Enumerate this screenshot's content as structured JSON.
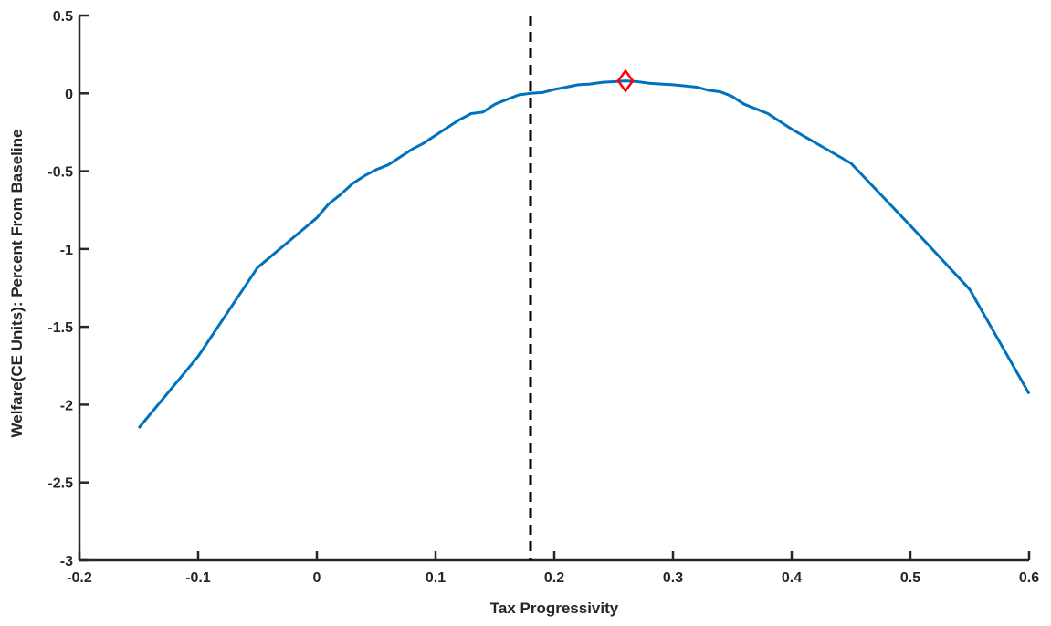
{
  "chart_data": {
    "type": "line",
    "title": "",
    "xlabel": "Tax Progressivity",
    "ylabel": "Welfare(CE Units): Percent From Baseline",
    "xlim": [
      -0.2,
      0.6
    ],
    "ylim": [
      -3,
      0.5
    ],
    "x_ticks": [
      -0.2,
      -0.1,
      0,
      0.1,
      0.2,
      0.3,
      0.4,
      0.5,
      0.6
    ],
    "x_tick_labels": [
      "-0.2",
      "-0.1",
      "0",
      "0.1",
      "0.2",
      "0.3",
      "0.4",
      "0.5",
      "0.6"
    ],
    "y_ticks": [
      -3,
      -2.5,
      -2,
      -1.5,
      -1,
      -0.5,
      0,
      0.5
    ],
    "y_tick_labels": [
      "-3",
      "-2.5",
      "-2",
      "-1.5",
      "-1",
      "-0.5",
      "0",
      "0.5"
    ],
    "grid": false,
    "series": [
      {
        "color": "#0072BD",
        "x": [
          -0.15,
          -0.1,
          -0.05,
          0,
          0.01,
          0.02,
          0.03,
          0.04,
          0.05,
          0.06,
          0.07,
          0.08,
          0.09,
          0.1,
          0.11,
          0.12,
          0.13,
          0.14,
          0.15,
          0.16,
          0.17,
          0.18,
          0.19,
          0.2,
          0.21,
          0.22,
          0.23,
          0.24,
          0.25,
          0.26,
          0.27,
          0.28,
          0.29,
          0.3,
          0.31,
          0.32,
          0.33,
          0.34,
          0.35,
          0.36,
          0.37,
          0.38,
          0.39,
          0.4,
          0.45,
          0.5,
          0.55,
          0.6
        ],
        "y": [
          -2.15,
          -1.69,
          -1.12,
          -0.8,
          -0.71,
          -0.65,
          -0.58,
          -0.53,
          -0.49,
          -0.46,
          -0.41,
          -0.36,
          -0.32,
          -0.27,
          -0.22,
          -0.17,
          -0.13,
          -0.12,
          -0.07,
          -0.04,
          -0.01,
          0.0,
          0.005,
          0.025,
          0.04,
          0.055,
          0.06,
          0.07,
          0.075,
          0.08,
          0.075,
          0.065,
          0.06,
          0.055,
          0.048,
          0.04,
          0.02,
          0.01,
          -0.02,
          -0.07,
          -0.1,
          -0.13,
          -0.18,
          -0.23,
          -0.45,
          -0.85,
          -1.26,
          -1.93
        ]
      }
    ],
    "vertical_line": {
      "x": 0.18,
      "style": "dashed",
      "color": "#000000"
    },
    "marker": {
      "x": 0.26,
      "y": 0.08,
      "shape": "diamond",
      "color": "#FF0000"
    }
  }
}
